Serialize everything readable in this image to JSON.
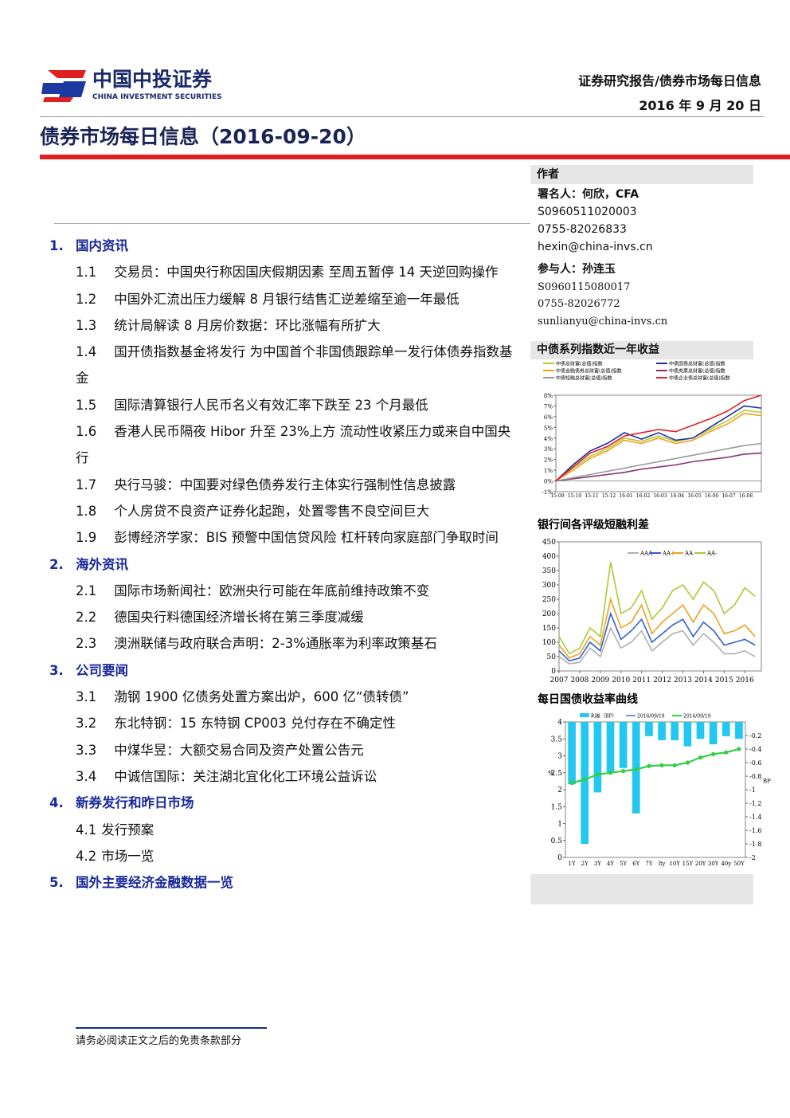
{
  "header": {
    "logo_cn": "中国中投证券",
    "logo_en": "CHINA INVESTMENT SECURITIES",
    "report_type": "证券研究报告/债券市场每日信息",
    "date": "2016 年 9 月 20 日"
  },
  "title": "债券市场每日信息（2016-09-20）",
  "sections": [
    {
      "num": "1.",
      "title": "国内资讯",
      "items": [
        {
          "num": "1.1",
          "text": "交易员：中国央行称因国庆假期因素 至周五暂停 14 天逆回购操作"
        },
        {
          "num": "1.2",
          "text": "中国外汇流出压力缓解 8 月银行结售汇逆差缩至逾一年最低"
        },
        {
          "num": "1.3",
          "text": "统计局解读 8 月房价数据：环比涨幅有所扩大"
        },
        {
          "num": "1.4",
          "text": "国开债指数基金将发行 为中国首个非国债跟踪单一发行体债券指数基金"
        },
        {
          "num": "1.5",
          "text": "国际清算银行人民币名义有效汇率下跌至 23 个月最低"
        },
        {
          "num": "1.6",
          "text": "香港人民币隔夜 Hibor 升至 23%上方 流动性收紧压力或来自中国央行"
        },
        {
          "num": "1.7",
          "text": "央行马骏：中国要对绿色债券发行主体实行强制性信息披露"
        },
        {
          "num": "1.8",
          "text": "个人房贷不良资产证券化起跑，处置零售不良空间巨大"
        },
        {
          "num": "1.9",
          "text": "彭博经济学家：BIS 预警中国信贷风险 杠杆转向家庭部门争取时间"
        }
      ]
    },
    {
      "num": "2.",
      "title": "海外资讯",
      "items": [
        {
          "num": "2.1",
          "text": "国际市场新闻社：欧洲央行可能在年底前维持政策不变"
        },
        {
          "num": "2.2",
          "text": "德国央行料德国经济增长将在第三季度减缓"
        },
        {
          "num": "2.3",
          "text": "澳洲联储与政府联合声明：2-3%通胀率为利率政策基石"
        }
      ]
    },
    {
      "num": "3.",
      "title": "公司要闻",
      "items": [
        {
          "num": "3.1",
          "text": "渤钢 1900 亿债务处置方案出炉，600 亿“债转债”"
        },
        {
          "num": "3.2",
          "text": "东北特钢：15 东特钢 CP003 兑付存在不确定性"
        },
        {
          "num": "3.3",
          "text": "中煤华昱：大额交易合同及资产处置公告元"
        },
        {
          "num": "3.4",
          "text": "中诚信国际：关注湖北宜化化工环境公益诉讼"
        }
      ]
    },
    {
      "num": "4.",
      "title": "新券发行和昨日市场",
      "items": [
        {
          "num": "4.1",
          "text": "发行预案"
        },
        {
          "num": "4.2",
          "text": "市场一览"
        }
      ]
    },
    {
      "num": "5.",
      "title": "国外主要经济金融数据一览",
      "items": []
    }
  ],
  "sidebar": {
    "heading": "作者",
    "lines": [
      "署名人：何欣，CFA",
      "S0960511020003",
      "0755-82026833",
      "hexin@china-invs.cn",
      "参与人：孙连玉",
      "S0960115080017",
      "0755-82026772",
      "sunlianyu@china-invs.cn"
    ]
  },
  "footer": "请务必阅读正文之后的免责条款部分",
  "chart_data": [
    {
      "type": "line",
      "title": "中债系列指数近一年收益",
      "categories": [
        "15-09",
        "15-10",
        "15-11",
        "15-12",
        "16-01",
        "16-02",
        "16-03",
        "16-04",
        "16-05",
        "16-06",
        "16-07",
        "16-08",
        null
      ],
      "ylim": [
        -1,
        8
      ],
      "yticks": [
        {
          "value": -1,
          "label": "-1%"
        },
        {
          "value": 0,
          "label": "0%"
        },
        {
          "value": 1,
          "label": "1%"
        },
        {
          "value": 2,
          "label": "2%"
        },
        {
          "value": 3,
          "label": "3%"
        },
        {
          "value": 4,
          "label": "4%"
        },
        {
          "value": 5,
          "label": "5%"
        },
        {
          "value": 6,
          "label": "6%"
        },
        {
          "value": 7,
          "label": "7%"
        },
        {
          "value": 8,
          "label": "8%"
        }
      ],
      "series": [
        {
          "name": "中债总财富(总值)指数",
          "color": "#b5c930",
          "values": [
            0,
            1.2,
            2.3,
            3.0,
            4.0,
            3.7,
            4.2,
            3.7,
            4.0,
            4.8,
            5.6,
            6.6,
            6.4
          ]
        },
        {
          "name": "中债国债总财富(总值)指数",
          "color": "#1a2fa8",
          "values": [
            0,
            1.5,
            2.8,
            3.5,
            4.5,
            3.9,
            4.5,
            3.8,
            4.0,
            5.0,
            6.0,
            7.0,
            6.8
          ]
        },
        {
          "name": "中债金融债券总财富(总值)指数",
          "color": "#f0a020",
          "values": [
            0,
            1.0,
            2.1,
            2.8,
            3.8,
            3.5,
            4.0,
            3.5,
            3.8,
            4.6,
            5.3,
            6.3,
            6.1
          ]
        },
        {
          "name": "中债央票总财富(总值)指数",
          "color": "#8a3070",
          "values": [
            0,
            0.2,
            0.4,
            0.6,
            0.8,
            1.1,
            1.3,
            1.5,
            1.8,
            2.0,
            2.2,
            2.5,
            2.6
          ]
        },
        {
          "name": "中债短融总财富(总值)指数",
          "color": "#9a9a9a",
          "values": [
            0,
            0.3,
            0.6,
            0.9,
            1.2,
            1.5,
            1.8,
            2.1,
            2.4,
            2.7,
            3.0,
            3.3,
            3.5
          ]
        },
        {
          "name": "中债企业债总财富(总值)指数",
          "color": "#e0202a",
          "values": [
            0,
            1.3,
            2.6,
            3.2,
            4.2,
            4.5,
            4.8,
            4.6,
            5.2,
            5.8,
            6.5,
            7.5,
            8.0
          ]
        }
      ]
    },
    {
      "type": "line",
      "title": "银行间各评级短融利差",
      "x": [
        2007,
        2007.5,
        2008,
        2008.5,
        2009,
        2009.5,
        2010,
        2010.5,
        2011,
        2011.5,
        2012,
        2012.5,
        2013,
        2013.5,
        2014,
        2014.5,
        2015,
        2015.5,
        2016,
        2016.5
      ],
      "xlim": [
        2007,
        2016.8
      ],
      "xticks": [
        2007,
        2008,
        2009,
        2010,
        2011,
        2012,
        2013,
        2014,
        2015,
        2016
      ],
      "ylim": [
        0,
        450
      ],
      "yticks": [
        0,
        50,
        100,
        150,
        200,
        250,
        300,
        350,
        400,
        450
      ],
      "series": [
        {
          "name": "AAA",
          "color": "#b0b0b0",
          "values": [
            50,
            25,
            30,
            80,
            50,
            150,
            80,
            100,
            140,
            70,
            100,
            130,
            140,
            90,
            130,
            100,
            60,
            60,
            70,
            50
          ]
        },
        {
          "name": "AA+",
          "color": "#3060d0",
          "values": [
            70,
            35,
            45,
            100,
            70,
            200,
            110,
            140,
            180,
            100,
            130,
            160,
            180,
            120,
            170,
            140,
            90,
            100,
            110,
            90
          ]
        },
        {
          "name": "AA",
          "color": "#f0a020",
          "values": [
            90,
            45,
            60,
            120,
            90,
            250,
            150,
            170,
            230,
            130,
            170,
            200,
            230,
            170,
            230,
            200,
            130,
            140,
            160,
            120
          ]
        },
        {
          "name": "AA-",
          "color": "#a8cc30",
          "values": [
            120,
            60,
            80,
            150,
            120,
            380,
            200,
            220,
            280,
            180,
            220,
            280,
            300,
            250,
            310,
            280,
            200,
            230,
            290,
            260
          ]
        }
      ]
    },
    {
      "type": "combo",
      "title": "每日国债收益率曲线",
      "categories": [
        "1Y",
        "2Y",
        "3Y",
        "4Y",
        "5Y",
        "6Y",
        "7Y",
        "8y",
        "10Y",
        "15Y",
        "20Y",
        "30Y",
        "40y",
        "50Y"
      ],
      "ylabel": "%",
      "y2label": "BP",
      "ylim": [
        0,
        4
      ],
      "yticks": [
        0,
        0.5,
        1,
        1.5,
        2,
        2.5,
        3,
        3.5,
        4
      ],
      "y2lim": [
        -2,
        0
      ],
      "y2ticks": [
        -2,
        -1.8,
        -1.6,
        -1.4,
        -1.2,
        -1,
        -0.8,
        -0.6,
        -0.4,
        -0.2
      ],
      "series": [
        {
          "name": "利差（BP）",
          "type": "bar",
          "axis": "y2",
          "color": "#22c8f0",
          "values": [
            -0.92,
            -1.8,
            -1.04,
            -0.74,
            -0.68,
            -1.35,
            -0.21,
            -0.27,
            -0.27,
            -0.36,
            -0.25,
            -0.33,
            -0.21,
            -0.25
          ]
        },
        {
          "name": "2016/09/18",
          "type": "line",
          "color": "#7a9ac0",
          "values": [
            2.2,
            2.3,
            2.45,
            2.5,
            2.55,
            2.6,
            2.7,
            2.72,
            2.72,
            2.8,
            2.95,
            3.05,
            3.1,
            3.2
          ]
        },
        {
          "name": "2016/09/19",
          "type": "line",
          "color": "#30d040",
          "values": [
            2.2,
            2.3,
            2.45,
            2.5,
            2.55,
            2.6,
            2.7,
            2.72,
            2.72,
            2.8,
            2.95,
            3.05,
            3.1,
            3.2
          ]
        }
      ]
    }
  ]
}
